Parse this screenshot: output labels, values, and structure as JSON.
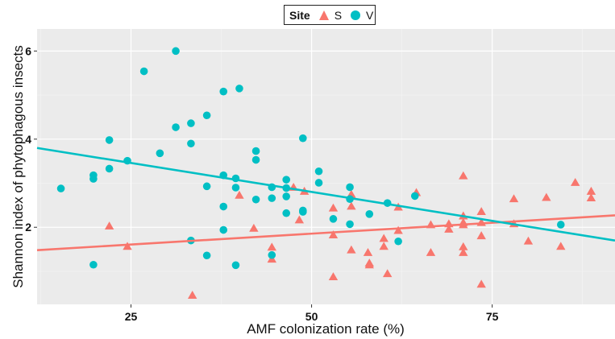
{
  "chart_data": {
    "type": "scatter",
    "xlabel": "AMF colonization rate (%)",
    "ylabel": "Shannon index of phytophagous insects",
    "xlim": [
      12,
      92
    ],
    "ylim": [
      0.25,
      6.5
    ],
    "xticks": [
      25,
      50,
      75
    ],
    "yticks": [
      2,
      4,
      6
    ],
    "grid": true,
    "legend": {
      "title": "Site",
      "position": "top",
      "entries": [
        {
          "label": "S",
          "shape": "triangle",
          "color": "#F8766D"
        },
        {
          "label": "V",
          "shape": "circle",
          "color": "#00BFC4"
        }
      ]
    },
    "series": [
      {
        "name": "S",
        "color": "#F8766D",
        "shape": "triangle",
        "points": [
          [
            22,
            2.02
          ],
          [
            24.5,
            1.56
          ],
          [
            33.5,
            0.45
          ],
          [
            40,
            2.72
          ],
          [
            42,
            1.97
          ],
          [
            44.5,
            1.27
          ],
          [
            44.5,
            1.54
          ],
          [
            47.5,
            2.9
          ],
          [
            48.3,
            2.16
          ],
          [
            49,
            2.81
          ],
          [
            53,
            2.43
          ],
          [
            53,
            1.82
          ],
          [
            53,
            0.87
          ],
          [
            55.5,
            2.74
          ],
          [
            55.5,
            2.47
          ],
          [
            55.5,
            1.48
          ],
          [
            57.8,
            1.42
          ],
          [
            58,
            1.14
          ],
          [
            58,
            1.18
          ],
          [
            60,
            1.56
          ],
          [
            60,
            1.74
          ],
          [
            60.5,
            0.94
          ],
          [
            62,
            2.45
          ],
          [
            62,
            1.92
          ],
          [
            64.5,
            2.78
          ],
          [
            66.5,
            2.05
          ],
          [
            66.5,
            1.42
          ],
          [
            69,
            2.07
          ],
          [
            69,
            1.95
          ],
          [
            71,
            3.16
          ],
          [
            71,
            2.25
          ],
          [
            71,
            2.1
          ],
          [
            71,
            2.05
          ],
          [
            71,
            1.55
          ],
          [
            71,
            1.42
          ],
          [
            73.5,
            2.35
          ],
          [
            73.5,
            2.1
          ],
          [
            73.5,
            1.8
          ],
          [
            73.5,
            0.7
          ],
          [
            78,
            2.64
          ],
          [
            78,
            2.07
          ],
          [
            80,
            1.68
          ],
          [
            82.5,
            2.67
          ],
          [
            84.5,
            1.56
          ],
          [
            86.5,
            3.01
          ],
          [
            88.7,
            2.81
          ],
          [
            88.7,
            2.66
          ]
        ]
      },
      {
        "name": "V",
        "color": "#00BFC4",
        "shape": "circle",
        "points": [
          [
            15.3,
            2.88
          ],
          [
            19.8,
            3.18
          ],
          [
            19.8,
            3.1
          ],
          [
            19.8,
            1.15
          ],
          [
            22,
            3.98
          ],
          [
            22,
            3.33
          ],
          [
            24.5,
            3.51
          ],
          [
            26.8,
            5.54
          ],
          [
            29,
            3.68
          ],
          [
            31.2,
            6.0
          ],
          [
            31.2,
            4.27
          ],
          [
            33.3,
            4.36
          ],
          [
            33.3,
            3.9
          ],
          [
            33.3,
            1.7
          ],
          [
            35.5,
            4.54
          ],
          [
            35.5,
            2.93
          ],
          [
            35.5,
            1.36
          ],
          [
            37.8,
            5.08
          ],
          [
            37.8,
            3.18
          ],
          [
            37.8,
            2.47
          ],
          [
            37.8,
            1.94
          ],
          [
            39.5,
            3.11
          ],
          [
            39.5,
            2.9
          ],
          [
            39.5,
            1.14
          ],
          [
            40,
            5.15
          ],
          [
            42.3,
            3.73
          ],
          [
            42.3,
            3.53
          ],
          [
            42.3,
            2.63
          ],
          [
            44.5,
            2.91
          ],
          [
            44.5,
            2.66
          ],
          [
            44.5,
            1.37
          ],
          [
            46.5,
            3.08
          ],
          [
            46.5,
            2.89
          ],
          [
            46.5,
            2.7
          ],
          [
            46.5,
            2.32
          ],
          [
            48.8,
            4.02
          ],
          [
            48.8,
            2.38
          ],
          [
            48.8,
            2.35
          ],
          [
            51,
            3.27
          ],
          [
            51,
            3.01
          ],
          [
            53,
            2.19
          ],
          [
            55.3,
            2.91
          ],
          [
            55.3,
            2.64
          ],
          [
            55.3,
            2.07
          ],
          [
            58,
            2.3
          ],
          [
            60.5,
            2.55
          ],
          [
            62,
            1.68
          ],
          [
            64.3,
            2.71
          ],
          [
            84.5,
            2.06
          ]
        ]
      }
    ],
    "trendlines": [
      {
        "name": "S",
        "color": "#F8766D",
        "x": [
          12,
          92
        ],
        "y": [
          1.48,
          2.27
        ]
      },
      {
        "name": "V",
        "color": "#00BFC4",
        "x": [
          12,
          92
        ],
        "y": [
          3.8,
          1.7
        ]
      }
    ]
  }
}
